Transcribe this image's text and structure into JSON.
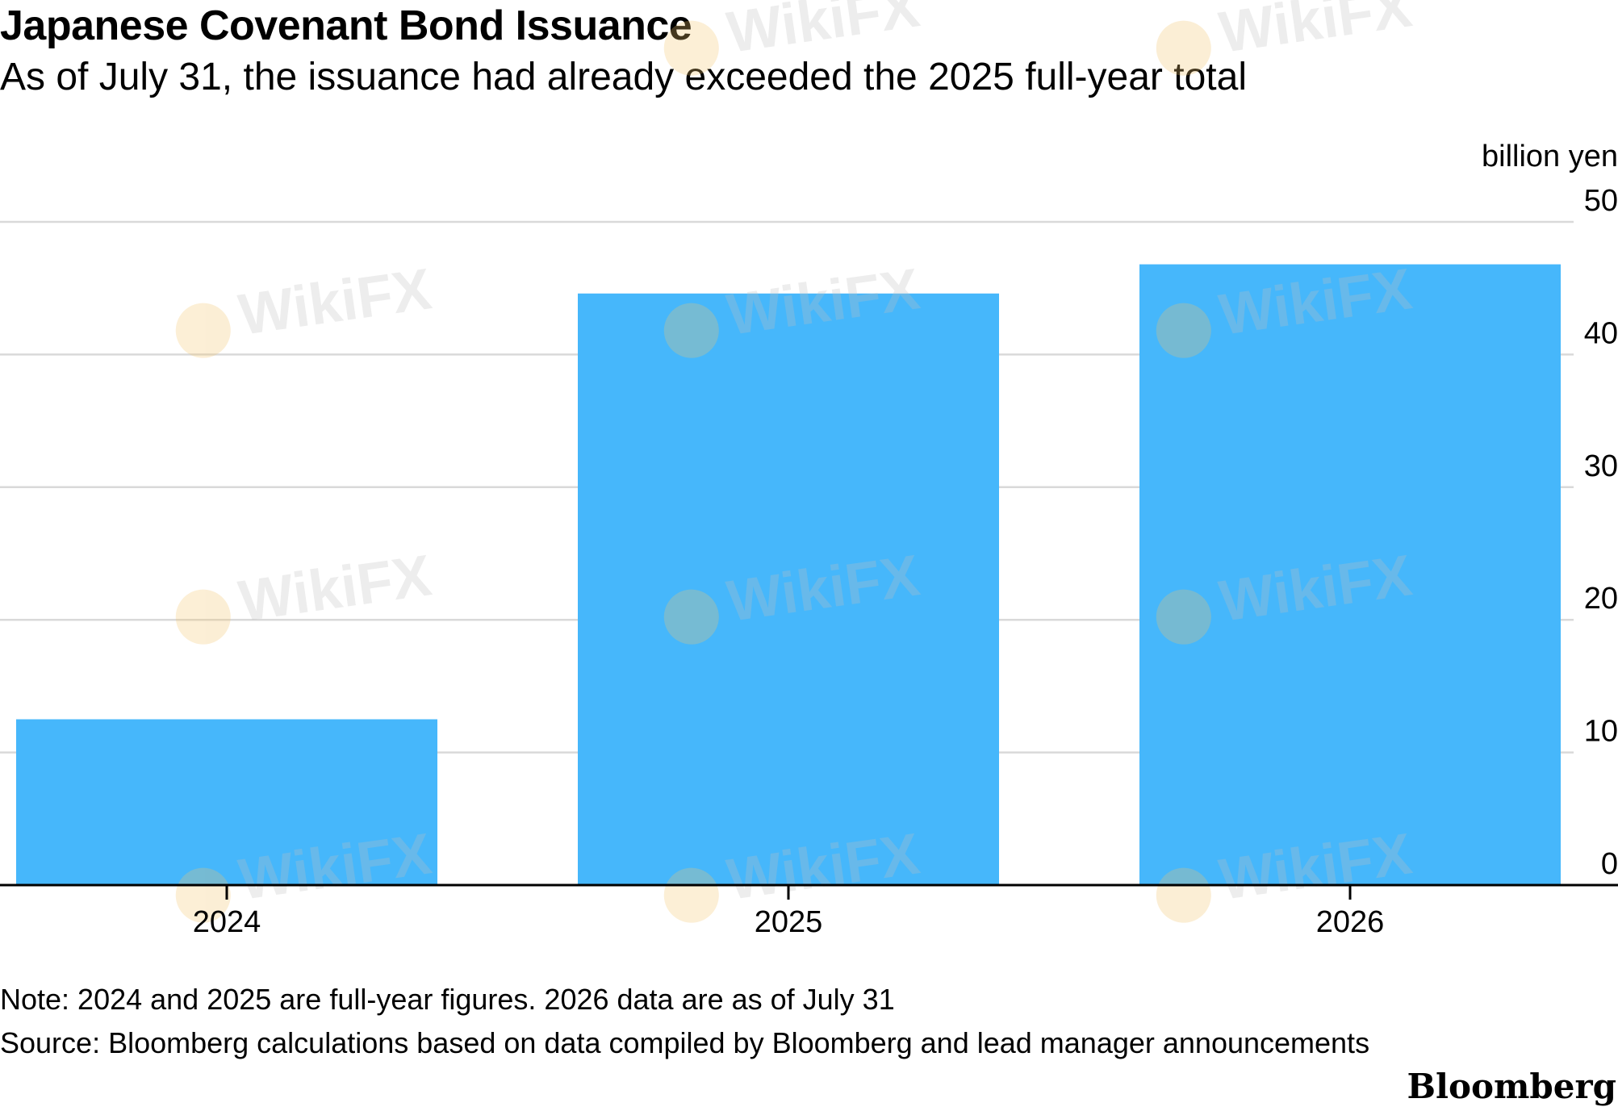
{
  "chart_data": {
    "type": "bar",
    "title": "Japanese Covenant Bond Issuance",
    "subtitle": "As of July 31, the issuance had already exceeded the 2025 full-year total",
    "unit_label": "billion yen",
    "categories": [
      "2024",
      "2025",
      "2026"
    ],
    "values": [
      12.5,
      44.6,
      46.8
    ],
    "ylim": [
      0,
      50
    ],
    "yticks": [
      0,
      10,
      20,
      30,
      40,
      50
    ],
    "y_axis_side": "right",
    "grid": true,
    "bar_color": "#46b7fb",
    "note": "Note: 2024 and 2025 are full-year figures. 2026 data are as of July 31",
    "source": "Source: Bloomberg calculations based on data compiled by Bloomberg and lead manager announcements"
  },
  "brand": "Bloomberg",
  "watermark": "WikiFX",
  "colors": {
    "bar": "#46b7fb",
    "grid": "#d9d9d9",
    "axis": "#000000",
    "watermark": "#bfbfbf"
  }
}
